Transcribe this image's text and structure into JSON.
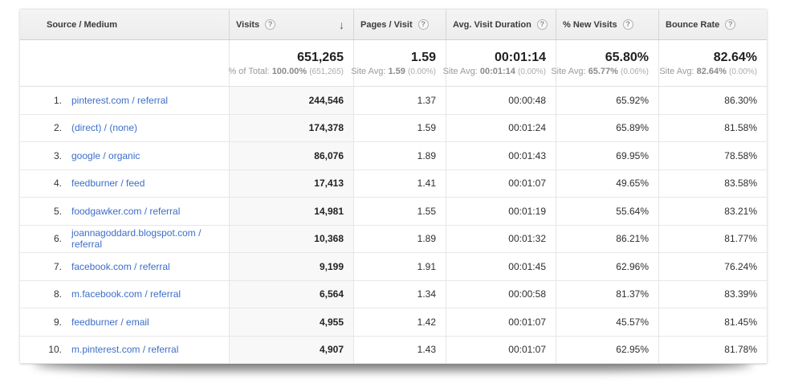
{
  "colors": {
    "link_blue": "#3d6ec9",
    "header_bg": "#efefef",
    "sorted_column_bg": "#f8f8f8",
    "grid_line": "#e5e5e5"
  },
  "glyphs": {
    "help": "?",
    "sort_desc": "↓"
  },
  "header": {
    "columns": {
      "source": "Source / Medium",
      "visits": "Visits",
      "pages": "Pages / Visit",
      "duration": "Avg. Visit Duration",
      "new_visits": "% New Visits",
      "bounce": "Bounce Rate"
    }
  },
  "summary": {
    "visits": {
      "value": "651,265",
      "sub_label": "% of Total:",
      "sub_value": "100.00%",
      "sub_note": "(651,265)"
    },
    "pages": {
      "value": "1.59",
      "sub_label": "Site Avg:",
      "sub_value": "1.59",
      "sub_note": "(0.00%)"
    },
    "duration": {
      "value": "00:01:14",
      "sub_label": "Site Avg:",
      "sub_value": "00:01:14",
      "sub_note": "(0.00%)"
    },
    "new_visits": {
      "value": "65.80%",
      "sub_label": "Site Avg:",
      "sub_value": "65.77%",
      "sub_note": "(0.06%)"
    },
    "bounce": {
      "value": "82.64%",
      "sub_label": "Site Avg:",
      "sub_value": "82.64%",
      "sub_note": "(0.00%)"
    }
  },
  "rows": [
    {
      "rank": "1.",
      "source": "pinterest.com / referral",
      "visits": "244,546",
      "pages": "1.37",
      "duration": "00:00:48",
      "new_visits": "65.92%",
      "bounce": "86.30%"
    },
    {
      "rank": "2.",
      "source": "(direct) / (none)",
      "visits": "174,378",
      "pages": "1.59",
      "duration": "00:01:24",
      "new_visits": "65.89%",
      "bounce": "81.58%"
    },
    {
      "rank": "3.",
      "source": "google / organic",
      "visits": "86,076",
      "pages": "1.89",
      "duration": "00:01:43",
      "new_visits": "69.95%",
      "bounce": "78.58%"
    },
    {
      "rank": "4.",
      "source": "feedburner / feed",
      "visits": "17,413",
      "pages": "1.41",
      "duration": "00:01:07",
      "new_visits": "49.65%",
      "bounce": "83.58%"
    },
    {
      "rank": "5.",
      "source": "foodgawker.com / referral",
      "visits": "14,981",
      "pages": "1.55",
      "duration": "00:01:19",
      "new_visits": "55.64%",
      "bounce": "83.21%"
    },
    {
      "rank": "6.",
      "source": "joannagoddard.blogspot.com / referral",
      "visits": "10,368",
      "pages": "1.89",
      "duration": "00:01:32",
      "new_visits": "86.21%",
      "bounce": "81.77%"
    },
    {
      "rank": "7.",
      "source": "facebook.com / referral",
      "visits": "9,199",
      "pages": "1.91",
      "duration": "00:01:45",
      "new_visits": "62.96%",
      "bounce": "76.24%"
    },
    {
      "rank": "8.",
      "source": "m.facebook.com / referral",
      "visits": "6,564",
      "pages": "1.34",
      "duration": "00:00:58",
      "new_visits": "81.37%",
      "bounce": "83.39%"
    },
    {
      "rank": "9.",
      "source": "feedburner / email",
      "visits": "4,955",
      "pages": "1.42",
      "duration": "00:01:07",
      "new_visits": "45.57%",
      "bounce": "81.45%"
    },
    {
      "rank": "10.",
      "source": "m.pinterest.com / referral",
      "visits": "4,907",
      "pages": "1.43",
      "duration": "00:01:07",
      "new_visits": "62.95%",
      "bounce": "81.78%"
    }
  ]
}
